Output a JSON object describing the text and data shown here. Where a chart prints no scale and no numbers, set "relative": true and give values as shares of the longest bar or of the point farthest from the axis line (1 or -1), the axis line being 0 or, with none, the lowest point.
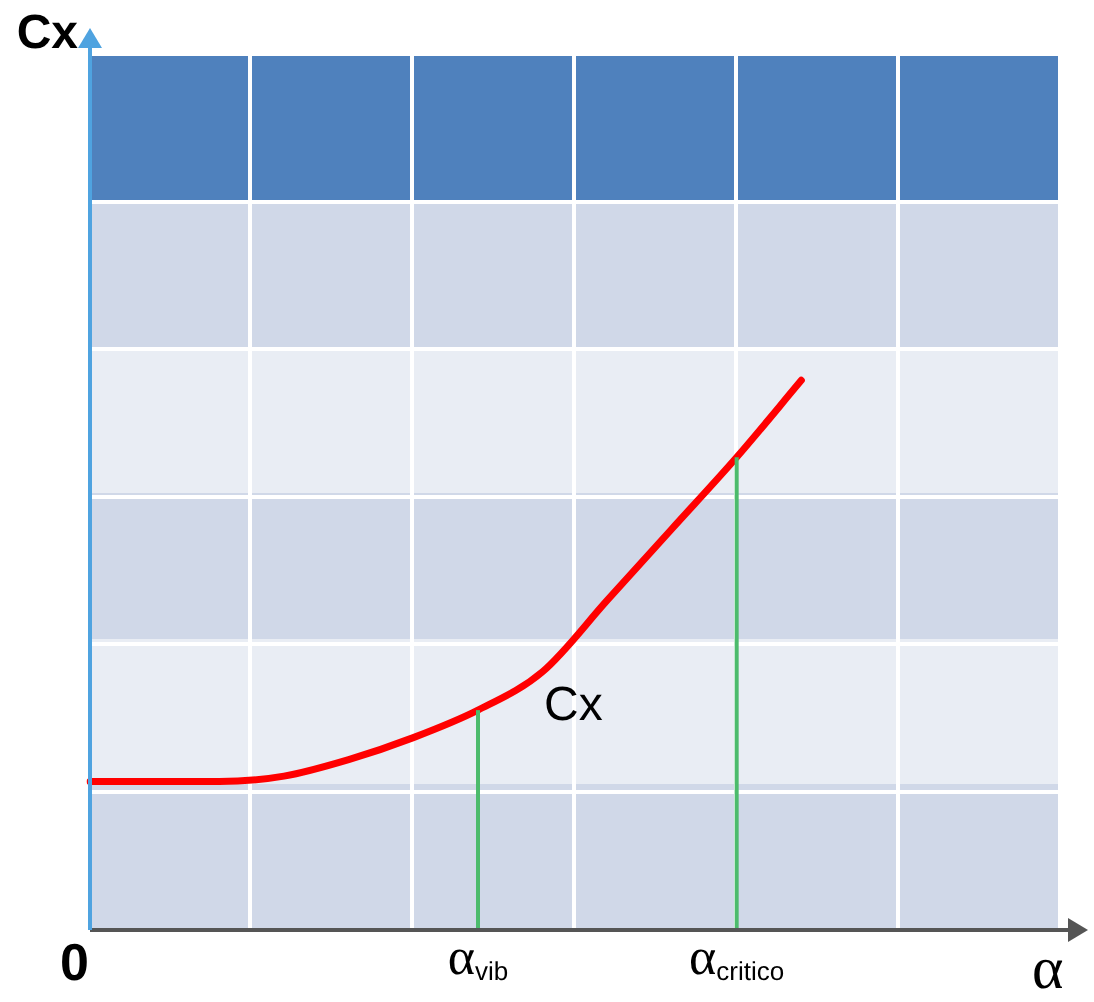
{
  "chart_data": {
    "type": "line",
    "relative": true,
    "xlabel": "α",
    "categories": [
      null,
      null,
      null,
      null,
      null,
      null,
      "α$_{vib}$",
      null,
      null,
      null,
      "α$_{critico}$",
      null,
      null,
      null,
      null,
      null
    ],
    "series": [
      {
        "color": "#ff0000",
        "values": [
          0.27,
          0.27,
          0.27,
          0.28,
          0.31,
          0.35,
          0.4,
          0.47,
          0.6,
          0.73,
          0.86,
          1,
          null,
          null,
          null,
          null
        ]
      }
    ],
    "ref_lines": [
      {
        "axis": "x",
        "value": "α$_{vib}$",
        "color": "#4cbb6c"
      },
      {
        "axis": "x",
        "value": "α$_{critico}$",
        "color": "#4cbb6c"
      }
    ],
    "annotations": [
      "Cx",
      "Cx",
      "0"
    ],
    "legend": false,
    "marker": "none",
    "line_style": "solid"
  }
}
